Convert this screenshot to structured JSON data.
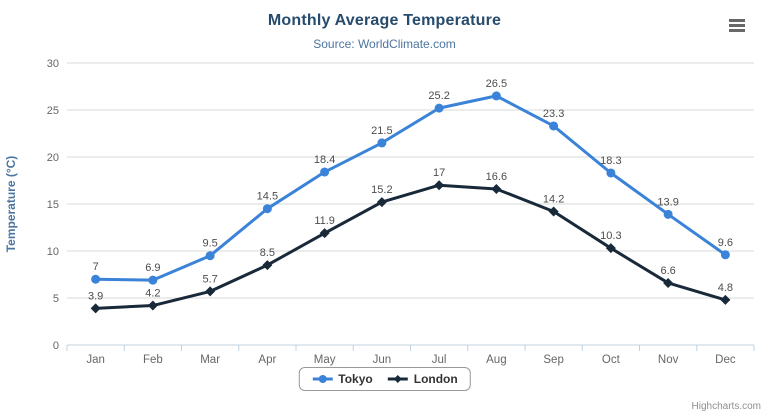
{
  "header": {
    "title": "Monthly Average Temperature",
    "subtitle": "Source: WorldClimate.com"
  },
  "colors": {
    "tokyo": "#3b83d8",
    "london": "#18293a",
    "gridline": "#d8d8d8",
    "axis_line": "#c0d0e0",
    "tick_label": "#666666",
    "data_label": "#4d4d4d",
    "axis_title": "#4d759e"
  },
  "chart_data": {
    "type": "line",
    "title": "Monthly Average Temperature",
    "subtitle": "Source: WorldClimate.com",
    "categories": [
      "Jan",
      "Feb",
      "Mar",
      "Apr",
      "May",
      "Jun",
      "Jul",
      "Aug",
      "Sep",
      "Oct",
      "Nov",
      "Dec"
    ],
    "series": [
      {
        "name": "Tokyo",
        "color": "#3b83d8",
        "marker": "circle",
        "values": [
          7,
          6.9,
          9.5,
          14.5,
          18.4,
          21.5,
          25.2,
          26.5,
          23.3,
          18.3,
          13.9,
          9.6
        ]
      },
      {
        "name": "London",
        "color": "#18293a",
        "marker": "diamond",
        "values": [
          3.9,
          4.2,
          5.7,
          8.5,
          11.9,
          15.2,
          17,
          16.6,
          14.2,
          10.3,
          6.6,
          4.8
        ]
      }
    ],
    "xlabel": "",
    "ylabel": "Temperature (°C)",
    "ylim": [
      0,
      30
    ],
    "ytick_interval": 5,
    "yticks": [
      0,
      5,
      10,
      15,
      20,
      25,
      30
    ],
    "grid": true,
    "data_labels": true,
    "legend_position": "bottom-center"
  },
  "credits": {
    "label": "Highcharts.com"
  },
  "export_menu": {
    "icon": "hamburger-icon"
  }
}
